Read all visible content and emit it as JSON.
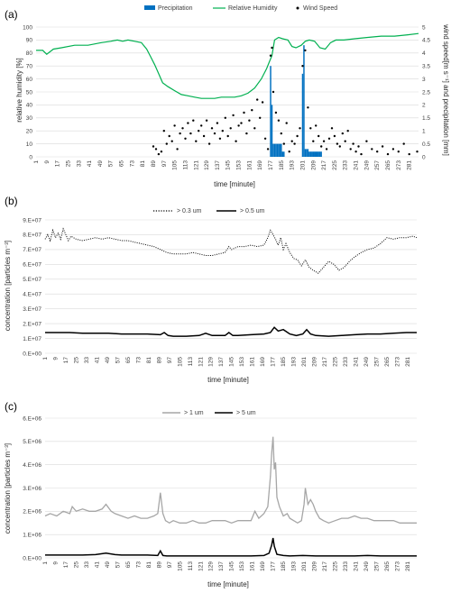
{
  "chart_data": [
    {
      "panel": "(a)",
      "type": "line+bar+scatter",
      "xlabel": "time [minute]",
      "ylabel_left": "relative humidity [%]",
      "ylabel_right": "wind speed[m s⁻¹] and precipitation [mm]",
      "ylim_left": [
        0,
        100
      ],
      "ylim_right": [
        0,
        5
      ],
      "yticks_left": [
        0,
        10,
        20,
        30,
        40,
        50,
        60,
        70,
        80,
        90,
        100
      ],
      "yticks_right": [
        0,
        0.5,
        1,
        1.5,
        2,
        2.5,
        3,
        3.5,
        4,
        4.5,
        5
      ],
      "xlim": [
        1,
        288
      ],
      "xticks": [
        1,
        9,
        17,
        25,
        33,
        41,
        49,
        57,
        65,
        73,
        81,
        89,
        97,
        105,
        113,
        121,
        129,
        137,
        145,
        153,
        161,
        169,
        177,
        185,
        193,
        201,
        209,
        217,
        225,
        233,
        241,
        249,
        257,
        265,
        273,
        281
      ],
      "legend": [
        "Precipitation",
        "Relative Humidity",
        "Wind Speed"
      ],
      "legend_position": "top",
      "colors": {
        "precipitation": "#0070c0",
        "humidity": "#00b050",
        "wind": "#000000"
      },
      "series": [
        {
          "name": "Relative Humidity",
          "axis": "left",
          "x": [
            1,
            6,
            9,
            14,
            20,
            30,
            40,
            50,
            57,
            62,
            66,
            70,
            75,
            80,
            84,
            87,
            90,
            93,
            96,
            100,
            105,
            110,
            115,
            120,
            125,
            130,
            135,
            140,
            145,
            150,
            155,
            160,
            165,
            170,
            174,
            176,
            178,
            180,
            183,
            186,
            190,
            193,
            196,
            200,
            203,
            206,
            210,
            214,
            218,
            222,
            226,
            232,
            240,
            250,
            260,
            270,
            280,
            288
          ],
          "y": [
            82,
            82,
            79,
            83,
            84,
            86,
            86,
            88,
            89,
            90,
            89,
            90,
            89,
            88,
            83,
            77,
            71,
            64,
            57,
            54,
            51,
            48,
            47,
            46,
            45,
            45,
            45,
            46,
            46,
            46,
            47,
            49,
            53,
            60,
            68,
            73,
            78,
            90,
            92,
            91,
            90,
            85,
            84,
            86,
            89,
            90,
            89,
            84,
            83,
            88,
            90,
            90,
            91,
            92,
            93,
            93,
            94,
            95
          ]
        },
        {
          "name": "Precipitation",
          "axis": "right",
          "type": "bar",
          "x": [
            177,
            178,
            179,
            180,
            181,
            182,
            183,
            184,
            185,
            186,
            187,
            201,
            202,
            203,
            204,
            205,
            206,
            207,
            208,
            209,
            210,
            211,
            212,
            213,
            214,
            215
          ],
          "y": [
            3.5,
            2.0,
            0.5,
            0.5,
            0.5,
            0.5,
            0.5,
            0.5,
            0.5,
            0.2,
            0.2,
            3.2,
            4.3,
            0.3,
            0.3,
            0.3,
            0.2,
            0.2,
            0.2,
            0.2,
            0.2,
            0.2,
            0.2,
            0.2,
            0.2,
            0.2
          ]
        },
        {
          "name": "Wind Speed",
          "axis": "right",
          "type": "scatter",
          "x": [
            89,
            91,
            93,
            95,
            97,
            99,
            101,
            103,
            105,
            107,
            109,
            111,
            113,
            115,
            117,
            119,
            121,
            123,
            125,
            127,
            129,
            131,
            133,
            135,
            137,
            139,
            141,
            143,
            145,
            147,
            149,
            151,
            153,
            155,
            157,
            159,
            161,
            163,
            165,
            167,
            169,
            171,
            173,
            175,
            177,
            178,
            179,
            181,
            183,
            185,
            187,
            189,
            191,
            193,
            195,
            197,
            199,
            201,
            203,
            205,
            207,
            209,
            211,
            213,
            215,
            217,
            219,
            221,
            223,
            225,
            227,
            229,
            231,
            233,
            235,
            237,
            239,
            241,
            243,
            245,
            249,
            253,
            257,
            261,
            265,
            269,
            273,
            277,
            281,
            287
          ],
          "y": [
            0.4,
            0.3,
            0.1,
            0.2,
            1.0,
            0.5,
            0.8,
            0.6,
            1.2,
            0.3,
            0.9,
            1.1,
            0.7,
            1.3,
            0.9,
            1.4,
            0.6,
            1.0,
            1.2,
            0.8,
            1.4,
            0.5,
            1.1,
            0.9,
            1.3,
            0.7,
            1.0,
            1.5,
            0.8,
            1.1,
            1.6,
            0.6,
            1.2,
            1.3,
            1.7,
            0.9,
            1.4,
            1.8,
            1.1,
            2.2,
            1.5,
            2.1,
            0.7,
            0.3,
            3.9,
            4.2,
            2.5,
            1.7,
            1.4,
            0.9,
            0.5,
            1.3,
            0.2,
            0.6,
            0.5,
            0.8,
            1.1,
            3.5,
            4.1,
            1.9,
            1.1,
            0.6,
            1.2,
            0.8,
            0.4,
            0.6,
            0.3,
            0.7,
            1.1,
            0.8,
            0.5,
            0.4,
            0.9,
            0.6,
            1.0,
            0.3,
            0.5,
            0.2,
            0.4,
            0.1,
            0.6,
            0.3,
            0.2,
            0.4,
            0.1,
            0.3,
            0.2,
            0.5,
            0.1,
            0.2
          ]
        }
      ]
    },
    {
      "panel": "(b)",
      "type": "line",
      "xlabel": "time [minute]",
      "ylabel": "concentration [particles m⁻³]",
      "ylim": [
        0,
        90000000
      ],
      "yticks": [
        "0.E+00",
        "1.E+07",
        "2.E+07",
        "3.E+07",
        "4.E+07",
        "5.E+07",
        "6.E+07",
        "7.E+07",
        "8.E+07",
        "9.E+07"
      ],
      "xlim": [
        1,
        288
      ],
      "xticks": [
        1,
        9,
        17,
        25,
        33,
        41,
        49,
        57,
        65,
        73,
        81,
        89,
        97,
        105,
        113,
        121,
        129,
        137,
        145,
        153,
        161,
        169,
        177,
        185,
        193,
        201,
        209,
        217,
        225,
        233,
        241,
        249,
        257,
        265,
        273,
        281
      ],
      "legend": [
        "> 0.3 um",
        "> 0.5 um"
      ],
      "legend_position": "top",
      "series": [
        {
          "name": "> 0.3 um",
          "style": "dotted",
          "x": [
            1,
            3,
            5,
            7,
            9,
            11,
            13,
            15,
            17,
            19,
            21,
            25,
            30,
            35,
            40,
            45,
            50,
            55,
            60,
            65,
            70,
            75,
            80,
            85,
            90,
            95,
            100,
            105,
            110,
            115,
            120,
            125,
            130,
            135,
            140,
            143,
            145,
            150,
            155,
            160,
            165,
            170,
            173,
            175,
            177,
            179,
            181,
            183,
            185,
            187,
            190,
            193,
            196,
            199,
            202,
            205,
            208,
            212,
            216,
            220,
            224,
            228,
            232,
            236,
            240,
            245,
            250,
            255,
            260,
            265,
            270,
            275,
            280,
            285,
            288
          ],
          "y": [
            77,
            80,
            76,
            83,
            78,
            81,
            77,
            84,
            80,
            76,
            79,
            77,
            76,
            77,
            78,
            77,
            78,
            77,
            76,
            76,
            75,
            74,
            73,
            72,
            70,
            68,
            67,
            67,
            67,
            68,
            67,
            66,
            66,
            67,
            68,
            72,
            70,
            72,
            72,
            73,
            72,
            73,
            78,
            83,
            80,
            77,
            73,
            78,
            70,
            74,
            68,
            64,
            63,
            59,
            63,
            58,
            56,
            54,
            58,
            62,
            60,
            56,
            58,
            62,
            65,
            68,
            70,
            71,
            74,
            78,
            77,
            78,
            78,
            79,
            78
          ]
        },
        {
          "name": "> 0.5 um",
          "style": "solid",
          "x": [
            1,
            10,
            20,
            30,
            40,
            50,
            60,
            70,
            80,
            90,
            93,
            96,
            100,
            110,
            120,
            125,
            130,
            140,
            143,
            146,
            150,
            160,
            170,
            175,
            178,
            181,
            185,
            190,
            195,
            200,
            203,
            206,
            210,
            220,
            230,
            240,
            250,
            260,
            270,
            280,
            288
          ],
          "y": [
            14,
            14,
            14,
            13.5,
            13.5,
            13.5,
            13,
            13,
            13,
            12.5,
            14,
            12,
            11.5,
            11.5,
            12,
            13.5,
            12,
            12,
            14,
            12,
            12,
            12.5,
            13,
            14,
            17.5,
            15,
            16,
            13,
            12,
            13,
            16,
            13,
            12,
            11.5,
            12,
            12.5,
            13,
            13,
            13.5,
            14,
            14
          ]
        }
      ]
    },
    {
      "panel": "(c)",
      "type": "line",
      "xlabel": "time [minute]",
      "ylabel": "concentration [particles m⁻³]",
      "ylim": [
        0,
        6000000
      ],
      "yticks": [
        "0.E+00",
        "1.E+06",
        "2.E+06",
        "3.E+06",
        "4.E+06",
        "5.E+06",
        "6.E+06"
      ],
      "xlim": [
        1,
        288
      ],
      "xticks": [
        1,
        9,
        17,
        25,
        33,
        41,
        49,
        57,
        65,
        73,
        81,
        89,
        97,
        105,
        113,
        121,
        129,
        137,
        145,
        153,
        161,
        169,
        177,
        185,
        193,
        201,
        209,
        217,
        225,
        233,
        241,
        249,
        257,
        265,
        273,
        281
      ],
      "legend": [
        "> 1 um",
        "> 5 um"
      ],
      "legend_position": "top",
      "colors": {
        "> 1 um": "#a6a6a6",
        "> 5 um": "#000000"
      },
      "series": [
        {
          "name": "> 1 um",
          "x": [
            1,
            5,
            10,
            15,
            20,
            22,
            25,
            30,
            35,
            40,
            45,
            48,
            52,
            55,
            60,
            65,
            70,
            75,
            80,
            85,
            88,
            90,
            92,
            94,
            97,
            100,
            105,
            110,
            115,
            120,
            125,
            130,
            135,
            140,
            145,
            150,
            155,
            160,
            163,
            166,
            170,
            173,
            175,
            176,
            177,
            178,
            179,
            180,
            182,
            185,
            188,
            190,
            193,
            196,
            199,
            201,
            202,
            204,
            206,
            208,
            210,
            213,
            216,
            220,
            225,
            230,
            235,
            240,
            245,
            250,
            255,
            260,
            265,
            270,
            275,
            280,
            285,
            288
          ],
          "y": [
            1.8,
            1.9,
            1.8,
            2.0,
            1.9,
            2.2,
            2.0,
            2.1,
            2.0,
            2.0,
            2.1,
            2.3,
            2.0,
            1.9,
            1.8,
            1.7,
            1.8,
            1.7,
            1.7,
            1.8,
            1.9,
            2.8,
            1.9,
            1.6,
            1.5,
            1.6,
            1.5,
            1.5,
            1.6,
            1.5,
            1.5,
            1.6,
            1.6,
            1.6,
            1.5,
            1.6,
            1.6,
            1.6,
            2.0,
            1.7,
            1.9,
            2.2,
            3.5,
            4.5,
            5.2,
            3.8,
            4.1,
            2.6,
            2.2,
            1.8,
            1.9,
            1.7,
            1.6,
            1.5,
            1.6,
            2.3,
            3.0,
            2.3,
            2.5,
            2.3,
            2.0,
            1.7,
            1.6,
            1.5,
            1.6,
            1.7,
            1.7,
            1.8,
            1.7,
            1.7,
            1.6,
            1.6,
            1.6,
            1.6,
            1.5,
            1.5,
            1.5,
            1.5
          ]
        },
        {
          "name": "> 5 um",
          "x": [
            1,
            10,
            20,
            30,
            40,
            48,
            55,
            60,
            70,
            80,
            88,
            90,
            92,
            95,
            100,
            110,
            120,
            130,
            140,
            150,
            160,
            170,
            174,
            176,
            177,
            178,
            180,
            185,
            190,
            200,
            210,
            220,
            230,
            240,
            250,
            260,
            270,
            280,
            288
          ],
          "y": [
            0.12,
            0.12,
            0.12,
            0.12,
            0.14,
            0.2,
            0.14,
            0.12,
            0.12,
            0.12,
            0.1,
            0.3,
            0.1,
            0.08,
            0.08,
            0.08,
            0.08,
            0.08,
            0.08,
            0.08,
            0.08,
            0.1,
            0.2,
            0.55,
            0.85,
            0.5,
            0.15,
            0.1,
            0.08,
            0.1,
            0.08,
            0.08,
            0.08,
            0.08,
            0.1,
            0.08,
            0.08,
            0.08,
            0.08
          ]
        }
      ]
    }
  ]
}
